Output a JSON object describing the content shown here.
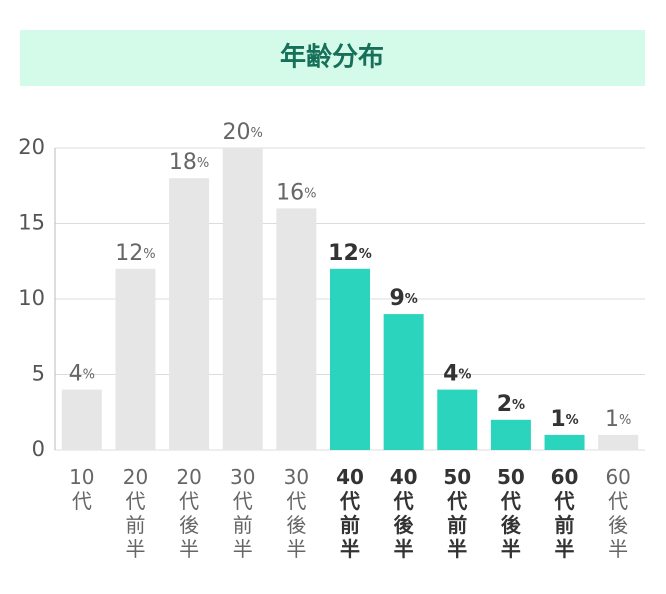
{
  "chart_data": {
    "type": "bar",
    "title": "年齢分布",
    "categories": [
      "10代",
      "20代前半",
      "20代後半",
      "30代前半",
      "30代後半",
      "40代前半",
      "40代後半",
      "50代前半",
      "50代後半",
      "60代前半",
      "60代後半"
    ],
    "values": [
      4,
      12,
      18,
      20,
      16,
      12,
      9,
      4,
      2,
      1,
      1
    ],
    "value_labels": [
      "4%",
      "12%",
      "18%",
      "20%",
      "16%",
      "12%",
      "9%",
      "4%",
      "2%",
      "1%",
      "1%"
    ],
    "colors": [
      "#e6e6e6",
      "#e6e6e6",
      "#e6e6e6",
      "#e6e6e6",
      "#e6e6e6",
      "#2bd4bd",
      "#2bd4bd",
      "#2bd4bd",
      "#2bd4bd",
      "#2bd4bd",
      "#e6e6e6"
    ],
    "ylim": [
      0,
      20
    ],
    "yticks": [
      0,
      5,
      10,
      15,
      20
    ],
    "grid": true
  }
}
